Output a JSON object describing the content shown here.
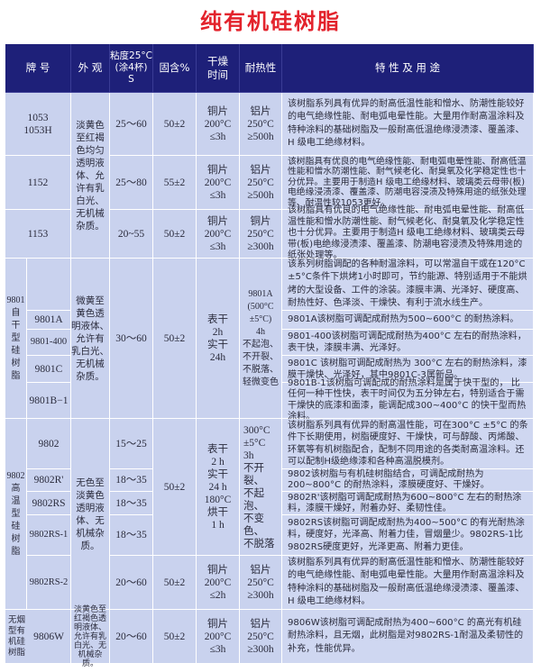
{
  "title": "纯有机硅树脂",
  "header": {
    "grade": "牌  号",
    "appearance": "外 观",
    "viscosity": "粘度25°C\n(涂4杯)\nS",
    "solids": "固含%",
    "dry_time": "干燥\n时间",
    "heat_resistance": "耐热性",
    "features": "特 性 及 用 途"
  },
  "rows": {
    "r1053": {
      "grade": "1053\n1053H",
      "viscosity": "25～60",
      "solids": "50±2",
      "dry": "铜片\n200°C\n≤3h",
      "heat": "铝片\n250°C\n≥500h",
      "desc": "该树脂系列具有优异的耐高低温性能和憎水、防潮性能较好的电气绝缘性能、耐电弧电晕性能。大量用作耐高温涂料及特种涂料的基础树脂及一般耐高低温绝缘浸渍漆、覆盖漆、H 级电工绝缘材料。"
    },
    "r1152": {
      "grade": "1152",
      "viscosity": "25～80",
      "solids": "55±2",
      "dry": "铜片\n200°C\n≤3h",
      "heat": "铝片\n250°C\n≥500h",
      "desc": "该树脂具有优良的电气绝缘性能、耐电弧电晕性能、耐高低温性能和憎水防潮性能、耐气候老化、耐臭氧及化学稳定性也十分优异。主要用于制造H 级电工绝缘材料、玻璃类云母带(板)电绝缘浸渍漆、覆盖漆、防潮电容浸渍及特殊用途的纸张处理等、耐温性较1053更好。"
    },
    "r1153": {
      "grade": "1153",
      "viscosity": "20~55",
      "solids": "50±2",
      "dry": "铜片\n200°C\n≤3h",
      "heat": "铜片\n250°C\n≥300h",
      "desc": "该树脂具有优良的电气绝缘性能、耐电弧电晕性能、耐高低温性能和憎水防潮性能、耐气候老化、耐臭氧及化学稳定性也十分优异。主要用于制造H 级电工绝缘材料、玻璃类云母带(板)电绝缘浸渍漆、覆盖漆、防潮电容浸渍及特殊用途的纸张处理等。"
    },
    "appearance_11xx": "淡黄色\n至红褐\n色均匀\n透明液\n体、允\n许有乳\n白光、\n无机械\n杂质。",
    "g9801": {
      "label": "9801\n自\n干\n型\n硅\n树\n脂",
      "appearance": "微黄至\n黄色透\n明液体、\n允许有\n乳白光、\n无机械\n杂质。",
      "viscosity": "30～60",
      "solids": "50±2",
      "dry": "表干\n2h\n实干\n24h",
      "heat": "9801A\n(500°C\n±5°C)\n4h\n不起泡、\n不开裂、\n不脱落、\n轻微变色",
      "intro": "该系列树脂调配的各种耐温涂料，可以常温自干或在120°C ±5°C条件下烘烤1小时即可，节约能源、特别适用于不能烘烤的大型设备、工件的涂装。漆膜丰满、光泽好、硬度高、耐热性好、色泽淡、干燥快、有利于流水线生产。",
      "items": [
        {
          "grade": "9801A",
          "desc": "9801A该树脂可调配成耐热为500~600°C 的耐热涂料。"
        },
        {
          "grade": "9801-400",
          "desc": "9801-400该树脂可调配成耐热为400°C 左右的耐热涂料，表干快，漆膜丰满、光泽好。"
        },
        {
          "grade": "9801C",
          "desc": "9801C 该树脂可调配成耐热为 300°C 左右的耐热涂料，漆膜干燥快、光泽好，其中9801C-3属新品。"
        },
        {
          "grade": "9801B−1",
          "desc": "9801B-1该树脂可调配成的耐热涂料是属于快干型的， 比任何一种干性快，表干时间仅为五分钟左右，特别适合于需干燥快的底漆和面漆，能调配成300~400°C 的快干型而热涂料。"
        }
      ]
    },
    "g9802": {
      "label": "9802\n高\n温\n型\n硅\n树\n脂",
      "appearance": "无色至\n淡黄色\n透明液\n体、无\n机械杂\n质。",
      "solids": "50±2",
      "dry": "表干\n2 h\n实干\n24 h\n180°C\n烘干\n1 h",
      "heat": "300°C\n±5°C\n3h\n不开裂、\n不起泡、\n不变色、\n不脱落",
      "intro": "该树脂系列具有优异的耐高温性能，可在300°C ±5°C 的条件下长期使用，树脂硬度好、干燥快，可与醇酸、丙烯酸、环氧等有机树脂配合，配制不同用途的各类耐高温涂料。还可以配制H级绝缘漆和各种高温脱模剂。",
      "items": [
        {
          "grade": "9802",
          "viscosity": "15～25",
          "desc": "9802该树脂与有机硅树脂结合，可调配成耐热为200~800°C 的耐热涂料，漆膜硬度好、干燥好。"
        },
        {
          "grade": "9802R'",
          "viscosity": "18～35",
          "desc": "9802R'该树脂可调配成耐热为600~800°C 左右的耐热涂料，漆膜干燥好，附着办好、柔韧性佳。"
        },
        {
          "grade": "9802RS",
          "viscosity": "18～35",
          "desc": "9802RS该树脂可调配成耐热为400~500°C 的有光耐热涂料，硬度好，光泽高、附着力佳，冒烟量少。9802RS-1比9802RS硬度更好，光泽更高、附着力更佳。"
        },
        {
          "grade": "9802RS-1",
          "viscosity": "18～35"
        }
      ],
      "rs2": {
        "grade": "9802RS-2",
        "viscosity": "20～60",
        "solids": "50±2",
        "dry": "铜片\n200°C\n≤2h",
        "heat": "铝片\n250°C\n≥300h",
        "desc": "该树脂系列具有优异的耐高低温性能和憎水、防潮性能较好的电气绝缘性能、耐电弧电晕性能。大量用作耐高温涂料及特种涂料的基础树脂及一般耐高低温绝缘浸渍漆、覆盖漆、H 级电工绝缘材料。"
      }
    },
    "r9806": {
      "label": "无烟\n型有\n机硅\n树脂",
      "grade": "9806W",
      "appearance": "淡黄色至\n红褐色透\n明液体、\n允许有乳\n白光、无\n机械杂质。",
      "viscosity": "20～60",
      "solids": "50±2",
      "dry": "铜片\n200°C\n≤3h",
      "heat": "铝片\n250°C\n≥300h",
      "desc": "9806W该树脂可调配成耐热为400~600°C 的高光有机硅耐热涂料，且无烟，此树脂是对9802RS-1耐温及柔韧性的补充，性能优异。"
    }
  },
  "colors": {
    "title": "#e3232c",
    "header_bg": "#1e2079",
    "cell_bg": "#c9d2ee"
  }
}
